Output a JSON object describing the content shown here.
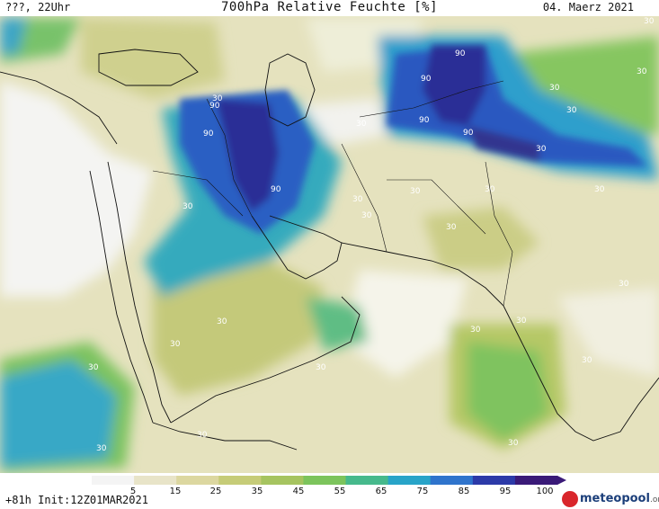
{
  "header": {
    "left": "???, 22Uhr",
    "title": "700hPa Relative Feuchte [%]",
    "date": "04. Maerz 2021"
  },
  "footer": {
    "run_info": "+81h Init:12Z01MAR2021"
  },
  "colorbar": {
    "labels": [
      "5",
      "15",
      "25",
      "35",
      "45",
      "55",
      "65",
      "75",
      "85",
      "95",
      "100"
    ],
    "colors": [
      "#f4f4f4",
      "#e8e4c8",
      "#dcd7a0",
      "#c6cc78",
      "#a6c460",
      "#7cc45c",
      "#46b98c",
      "#28a4c8",
      "#2f74cc",
      "#2c3aa8",
      "#3a1a78"
    ]
  },
  "logo": {
    "name": "meteopool",
    "suffix": ".org"
  },
  "map": {
    "contour_labels": [
      {
        "text": "90"
      },
      {
        "text": "90"
      },
      {
        "text": "90"
      },
      {
        "text": "90"
      },
      {
        "text": "90"
      },
      {
        "text": "90"
      },
      {
        "text": "90"
      },
      {
        "text": "30"
      },
      {
        "text": "30"
      },
      {
        "text": "30"
      },
      {
        "text": "30"
      },
      {
        "text": "30"
      },
      {
        "text": "30"
      },
      {
        "text": "30"
      },
      {
        "text": "30"
      },
      {
        "text": "30"
      },
      {
        "text": "30"
      },
      {
        "text": "30"
      },
      {
        "text": "30"
      },
      {
        "text": "30"
      },
      {
        "text": "30"
      },
      {
        "text": "30"
      },
      {
        "text": "30"
      },
      {
        "text": "30"
      },
      {
        "text": "30"
      },
      {
        "text": "30"
      },
      {
        "text": "30"
      },
      {
        "text": "30"
      },
      {
        "text": "30"
      },
      {
        "text": "30"
      },
      {
        "text": "30"
      },
      {
        "text": "30"
      }
    ]
  }
}
